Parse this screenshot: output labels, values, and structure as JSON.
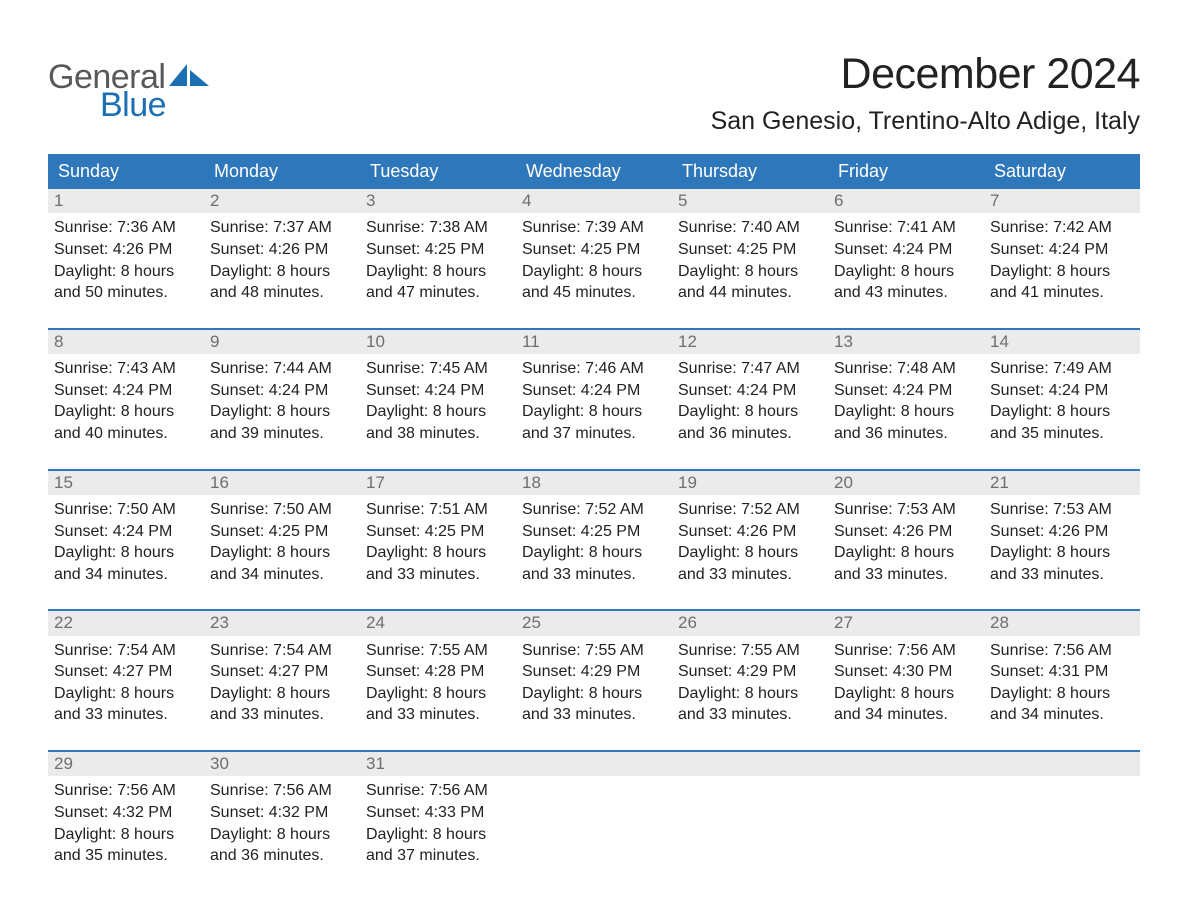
{
  "logo": {
    "text1": "General",
    "text2": "Blue",
    "sail_color": "#1b6fb3"
  },
  "title": "December 2024",
  "location": "San Genesio, Trentino-Alto Adige, Italy",
  "colors": {
    "header_bg": "#2f77bb",
    "header_text": "#ffffff",
    "daynum_bg": "#ebebeb",
    "daynum_text": "#6e6e6e",
    "body_text": "#222222",
    "week_divider": "#2f77bb"
  },
  "typography": {
    "title_fontsize": 43,
    "location_fontsize": 25,
    "weekday_fontsize": 18,
    "daynum_fontsize": 17,
    "body_fontsize": 16,
    "logo_fontsize": 34
  },
  "weekdays": [
    "Sunday",
    "Monday",
    "Tuesday",
    "Wednesday",
    "Thursday",
    "Friday",
    "Saturday"
  ],
  "weeks": [
    [
      {
        "n": "1",
        "sunrise": "7:36 AM",
        "sunset": "4:26 PM",
        "dl1": "Daylight: 8 hours",
        "dl2": "and 50 minutes."
      },
      {
        "n": "2",
        "sunrise": "7:37 AM",
        "sunset": "4:26 PM",
        "dl1": "Daylight: 8 hours",
        "dl2": "and 48 minutes."
      },
      {
        "n": "3",
        "sunrise": "7:38 AM",
        "sunset": "4:25 PM",
        "dl1": "Daylight: 8 hours",
        "dl2": "and 47 minutes."
      },
      {
        "n": "4",
        "sunrise": "7:39 AM",
        "sunset": "4:25 PM",
        "dl1": "Daylight: 8 hours",
        "dl2": "and 45 minutes."
      },
      {
        "n": "5",
        "sunrise": "7:40 AM",
        "sunset": "4:25 PM",
        "dl1": "Daylight: 8 hours",
        "dl2": "and 44 minutes."
      },
      {
        "n": "6",
        "sunrise": "7:41 AM",
        "sunset": "4:24 PM",
        "dl1": "Daylight: 8 hours",
        "dl2": "and 43 minutes."
      },
      {
        "n": "7",
        "sunrise": "7:42 AM",
        "sunset": "4:24 PM",
        "dl1": "Daylight: 8 hours",
        "dl2": "and 41 minutes."
      }
    ],
    [
      {
        "n": "8",
        "sunrise": "7:43 AM",
        "sunset": "4:24 PM",
        "dl1": "Daylight: 8 hours",
        "dl2": "and 40 minutes."
      },
      {
        "n": "9",
        "sunrise": "7:44 AM",
        "sunset": "4:24 PM",
        "dl1": "Daylight: 8 hours",
        "dl2": "and 39 minutes."
      },
      {
        "n": "10",
        "sunrise": "7:45 AM",
        "sunset": "4:24 PM",
        "dl1": "Daylight: 8 hours",
        "dl2": "and 38 minutes."
      },
      {
        "n": "11",
        "sunrise": "7:46 AM",
        "sunset": "4:24 PM",
        "dl1": "Daylight: 8 hours",
        "dl2": "and 37 minutes."
      },
      {
        "n": "12",
        "sunrise": "7:47 AM",
        "sunset": "4:24 PM",
        "dl1": "Daylight: 8 hours",
        "dl2": "and 36 minutes."
      },
      {
        "n": "13",
        "sunrise": "7:48 AM",
        "sunset": "4:24 PM",
        "dl1": "Daylight: 8 hours",
        "dl2": "and 36 minutes."
      },
      {
        "n": "14",
        "sunrise": "7:49 AM",
        "sunset": "4:24 PM",
        "dl1": "Daylight: 8 hours",
        "dl2": "and 35 minutes."
      }
    ],
    [
      {
        "n": "15",
        "sunrise": "7:50 AM",
        "sunset": "4:24 PM",
        "dl1": "Daylight: 8 hours",
        "dl2": "and 34 minutes."
      },
      {
        "n": "16",
        "sunrise": "7:50 AM",
        "sunset": "4:25 PM",
        "dl1": "Daylight: 8 hours",
        "dl2": "and 34 minutes."
      },
      {
        "n": "17",
        "sunrise": "7:51 AM",
        "sunset": "4:25 PM",
        "dl1": "Daylight: 8 hours",
        "dl2": "and 33 minutes."
      },
      {
        "n": "18",
        "sunrise": "7:52 AM",
        "sunset": "4:25 PM",
        "dl1": "Daylight: 8 hours",
        "dl2": "and 33 minutes."
      },
      {
        "n": "19",
        "sunrise": "7:52 AM",
        "sunset": "4:26 PM",
        "dl1": "Daylight: 8 hours",
        "dl2": "and 33 minutes."
      },
      {
        "n": "20",
        "sunrise": "7:53 AM",
        "sunset": "4:26 PM",
        "dl1": "Daylight: 8 hours",
        "dl2": "and 33 minutes."
      },
      {
        "n": "21",
        "sunrise": "7:53 AM",
        "sunset": "4:26 PM",
        "dl1": "Daylight: 8 hours",
        "dl2": "and 33 minutes."
      }
    ],
    [
      {
        "n": "22",
        "sunrise": "7:54 AM",
        "sunset": "4:27 PM",
        "dl1": "Daylight: 8 hours",
        "dl2": "and 33 minutes."
      },
      {
        "n": "23",
        "sunrise": "7:54 AM",
        "sunset": "4:27 PM",
        "dl1": "Daylight: 8 hours",
        "dl2": "and 33 minutes."
      },
      {
        "n": "24",
        "sunrise": "7:55 AM",
        "sunset": "4:28 PM",
        "dl1": "Daylight: 8 hours",
        "dl2": "and 33 minutes."
      },
      {
        "n": "25",
        "sunrise": "7:55 AM",
        "sunset": "4:29 PM",
        "dl1": "Daylight: 8 hours",
        "dl2": "and 33 minutes."
      },
      {
        "n": "26",
        "sunrise": "7:55 AM",
        "sunset": "4:29 PM",
        "dl1": "Daylight: 8 hours",
        "dl2": "and 33 minutes."
      },
      {
        "n": "27",
        "sunrise": "7:56 AM",
        "sunset": "4:30 PM",
        "dl1": "Daylight: 8 hours",
        "dl2": "and 34 minutes."
      },
      {
        "n": "28",
        "sunrise": "7:56 AM",
        "sunset": "4:31 PM",
        "dl1": "Daylight: 8 hours",
        "dl2": "and 34 minutes."
      }
    ],
    [
      {
        "n": "29",
        "sunrise": "7:56 AM",
        "sunset": "4:32 PM",
        "dl1": "Daylight: 8 hours",
        "dl2": "and 35 minutes."
      },
      {
        "n": "30",
        "sunrise": "7:56 AM",
        "sunset": "4:32 PM",
        "dl1": "Daylight: 8 hours",
        "dl2": "and 36 minutes."
      },
      {
        "n": "31",
        "sunrise": "7:56 AM",
        "sunset": "4:33 PM",
        "dl1": "Daylight: 8 hours",
        "dl2": "and 37 minutes."
      },
      null,
      null,
      null,
      null
    ]
  ],
  "labels": {
    "sunrise_prefix": "Sunrise: ",
    "sunset_prefix": "Sunset: "
  }
}
